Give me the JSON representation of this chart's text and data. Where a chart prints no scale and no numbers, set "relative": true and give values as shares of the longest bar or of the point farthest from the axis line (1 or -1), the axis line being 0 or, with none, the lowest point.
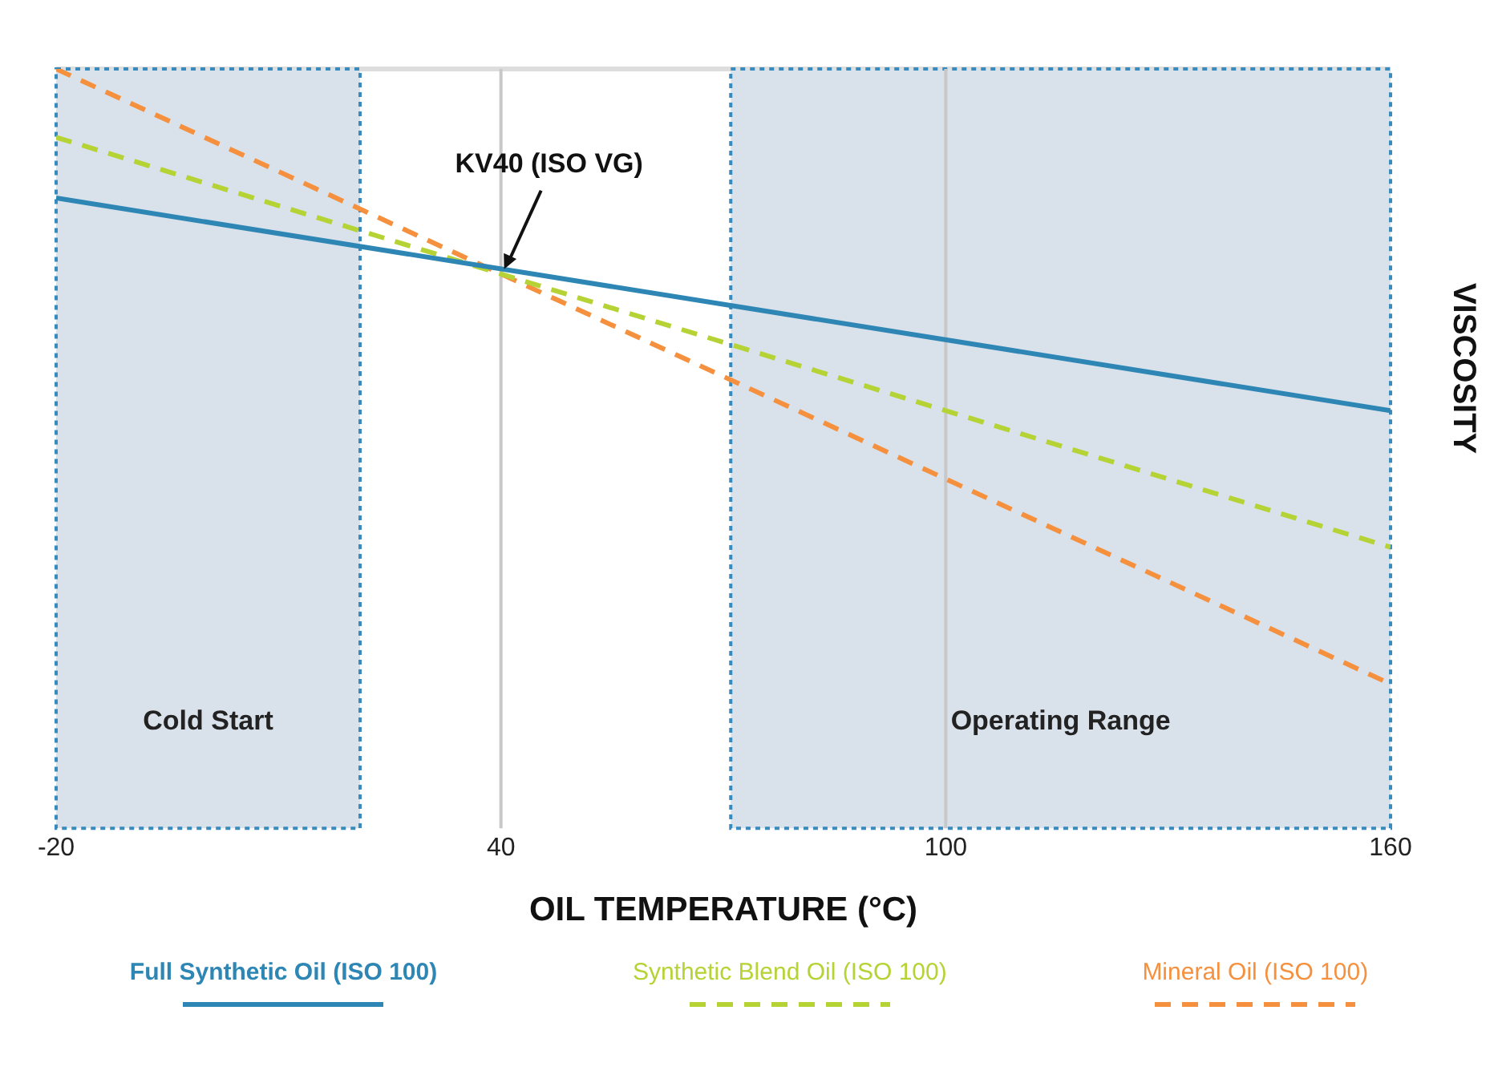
{
  "chart_data": {
    "type": "line",
    "relative": true,
    "xlabel": "OIL TEMPERATURE (°C)",
    "ylabel": "VISCOSITY",
    "x": [
      -20,
      160
    ],
    "xlim": [
      -20,
      160
    ],
    "xticks": [
      -20,
      40,
      100,
      160
    ],
    "tick_labels": "x",
    "grid": false,
    "legend": "bottom",
    "marker": "none",
    "series": [
      {
        "name": "Full Synthetic Oil (ISO 100)",
        "color": "#2e86b5",
        "values": [
          0.83,
          0.55
        ],
        "line_style": "solid"
      },
      {
        "name": "Synthetic Blend Oil (ISO 100)",
        "color": "#b5d334",
        "values": [
          0.91,
          0.37
        ],
        "line_style": "dashed"
      },
      {
        "name": "Mineral Oil (ISO 100)",
        "color": "#f5913e",
        "values": [
          1,
          0.19
        ],
        "line_style": "dashed"
      }
    ],
    "bands": [
      {
        "axis": "x",
        "from": -20,
        "to": 21,
        "label": "Cold Start",
        "color": "#d9e1ea"
      },
      {
        "axis": "x",
        "from": 71,
        "to": 160,
        "label": "Operating Range",
        "color": "#d9e1ea"
      }
    ],
    "ref_lines": [
      {
        "axis": "x",
        "value": 40,
        "color": "#c8c8c8"
      },
      {
        "axis": "x",
        "value": 100,
        "color": "#c8c8c8"
      }
    ],
    "annotations": [
      {
        "text": "KV40 (ISO VG)",
        "x": 40,
        "y": 0.73
      }
    ]
  }
}
